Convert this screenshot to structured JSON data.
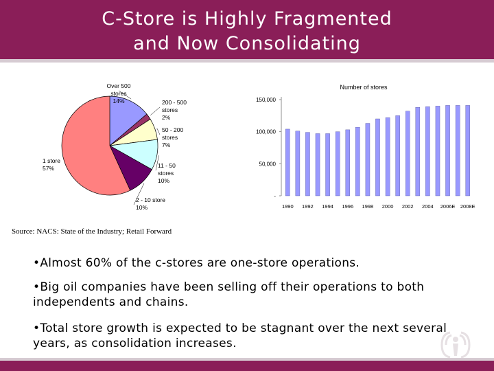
{
  "title": {
    "line1": "C-Store is Highly Fragmented",
    "line2": "and Now Consolidating"
  },
  "source": "Source: NACS: State of the Industry; Retail Forward",
  "bullets": [
    "•Almost 60% of the c-stores are one-store operations.",
    "•Big oil companies have been selling off their operations to both independents and chains.",
    "•Total store growth is expected to be stagnant over the next several years, as consolidation increases."
  ],
  "chart_data": [
    {
      "type": "pie",
      "slices": [
        {
          "label": [
            "Over 500",
            "stores",
            "14%"
          ],
          "value": 14,
          "color": "#9999ff"
        },
        {
          "label": [
            "200 - 500",
            "stores",
            "2%"
          ],
          "value": 2,
          "color": "#993366"
        },
        {
          "label": [
            "50 - 200",
            "stores",
            "7%"
          ],
          "value": 7,
          "color": "#ffffcc"
        },
        {
          "label": [
            "11 - 50",
            "stores",
            "10%"
          ],
          "value": 10,
          "color": "#ccffff"
        },
        {
          "label": [
            "2 - 10 store",
            "10%"
          ],
          "value": 10,
          "color": "#660066"
        },
        {
          "label": [
            "1 store",
            "57%"
          ],
          "value": 57,
          "color": "#ff8080"
        }
      ]
    },
    {
      "type": "bar",
      "title": "Number of stores",
      "categories": [
        "1990",
        "1991",
        "1992",
        "1993",
        "1994",
        "1995",
        "1996",
        "1997",
        "1998",
        "1999",
        "2000",
        "2001",
        "2002",
        "2003",
        "2004",
        "2005",
        "2006E",
        "2007E",
        "2008E"
      ],
      "tick_labels": [
        "1990",
        "1992",
        "1994",
        "1996",
        "1998",
        "2000",
        "2002",
        "2004",
        "2006E",
        "2008E"
      ],
      "values": [
        104000,
        101000,
        99000,
        97000,
        97000,
        100000,
        103000,
        107000,
        113000,
        120000,
        122000,
        125000,
        132000,
        138000,
        139000,
        140000,
        141000,
        141000,
        141000
      ],
      "yticks": [
        {
          "value": 0,
          "label": "-"
        },
        {
          "value": 50000,
          "label": "50,000"
        },
        {
          "value": 100000,
          "label": "100,000"
        },
        {
          "value": 150000,
          "label": "150,000"
        }
      ],
      "ylim": [
        0,
        150000
      ],
      "bar_color": "#9999ff"
    }
  ]
}
